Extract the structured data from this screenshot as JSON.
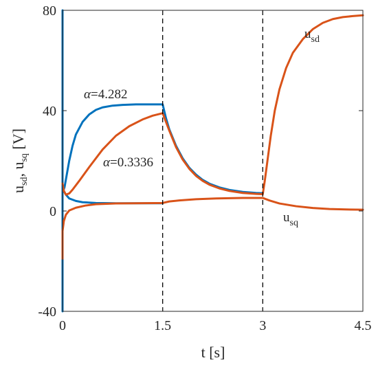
{
  "chart_data": {
    "type": "line",
    "title": "",
    "xlabel": "t [s]",
    "ylabel": {
      "u1": "u",
      "sub1": "sd",
      "sep": ", ",
      "u2": "u",
      "sub2": "sq",
      "unit": " [V]"
    },
    "xlim": [
      0,
      4.5
    ],
    "ylim": [
      -40,
      80
    ],
    "xticks": [
      0,
      1.5,
      3,
      4.5
    ],
    "xtick_labels": [
      "0",
      "1.5",
      "3",
      "4.5"
    ],
    "yticks": [
      -40,
      0,
      40,
      80
    ],
    "ytick_labels": [
      "-40",
      "0",
      "40",
      "80"
    ],
    "grid": false,
    "vlines": [
      1.5,
      3
    ],
    "series": [
      {
        "color": "#0072BD",
        "points": [
          [
            0,
            -40
          ],
          [
            0,
            80
          ],
          [
            0,
            10
          ],
          [
            0.01,
            8
          ],
          [
            0.03,
            9.5
          ],
          [
            0.06,
            14
          ],
          [
            0.1,
            20
          ],
          [
            0.15,
            26
          ],
          [
            0.2,
            30.5
          ],
          [
            0.3,
            35.5
          ],
          [
            0.4,
            38.5
          ],
          [
            0.5,
            40.3
          ],
          [
            0.6,
            41.3
          ],
          [
            0.75,
            42
          ],
          [
            0.9,
            42.3
          ],
          [
            1.1,
            42.5
          ],
          [
            1.3,
            42.5
          ],
          [
            1.5,
            42.5
          ],
          [
            1.55,
            37
          ],
          [
            1.6,
            32.5
          ],
          [
            1.7,
            26
          ],
          [
            1.8,
            21
          ],
          [
            1.9,
            17.2
          ],
          [
            2.0,
            14.5
          ],
          [
            2.1,
            12.4
          ],
          [
            2.2,
            10.9
          ],
          [
            2.35,
            9.4
          ],
          [
            2.5,
            8.4
          ],
          [
            2.7,
            7.6
          ],
          [
            2.9,
            7.2
          ],
          [
            3.0,
            7.1
          ]
        ]
      },
      {
        "color": "#0072BD",
        "points": [
          [
            0,
            9
          ],
          [
            0.05,
            6.5
          ],
          [
            0.1,
            5
          ],
          [
            0.2,
            4
          ],
          [
            0.3,
            3.5
          ],
          [
            0.5,
            3.2
          ],
          [
            0.8,
            3.1
          ],
          [
            1.1,
            3.1
          ],
          [
            1.5,
            3.1
          ]
        ]
      },
      {
        "color": "#D95319",
        "points": [
          [
            0,
            11
          ],
          [
            0.02,
            8
          ],
          [
            0.05,
            6.5
          ],
          [
            0.1,
            7
          ],
          [
            0.15,
            8.5
          ],
          [
            0.25,
            12
          ],
          [
            0.4,
            17.5
          ],
          [
            0.6,
            24.5
          ],
          [
            0.8,
            30
          ],
          [
            1.0,
            33.8
          ],
          [
            1.2,
            36.5
          ],
          [
            1.35,
            38
          ],
          [
            1.5,
            39
          ],
          [
            1.55,
            35.5
          ],
          [
            1.6,
            32
          ],
          [
            1.7,
            25.5
          ],
          [
            1.8,
            20.5
          ],
          [
            1.9,
            16.8
          ],
          [
            2.0,
            14
          ],
          [
            2.1,
            12
          ],
          [
            2.2,
            10.5
          ],
          [
            2.35,
            9
          ],
          [
            2.5,
            8
          ],
          [
            2.7,
            7.2
          ],
          [
            2.9,
            6.8
          ],
          [
            3.0,
            6.7
          ],
          [
            3.03,
            12
          ],
          [
            3.07,
            20
          ],
          [
            3.12,
            30
          ],
          [
            3.18,
            40
          ],
          [
            3.25,
            48.5
          ],
          [
            3.35,
            57
          ],
          [
            3.45,
            63
          ],
          [
            3.6,
            68.5
          ],
          [
            3.75,
            72.5
          ],
          [
            3.9,
            75
          ],
          [
            4.05,
            76.5
          ],
          [
            4.2,
            77.3
          ],
          [
            4.35,
            77.7
          ],
          [
            4.5,
            78
          ]
        ]
      },
      {
        "color": "#D95319",
        "points": [
          [
            0,
            -19
          ],
          [
            0,
            -8
          ],
          [
            0.02,
            -4
          ],
          [
            0.05,
            -1.5
          ],
          [
            0.1,
            0.2
          ],
          [
            0.2,
            1.3
          ],
          [
            0.35,
            2.2
          ],
          [
            0.5,
            2.7
          ],
          [
            0.8,
            3.0
          ],
          [
            1.1,
            3.1
          ],
          [
            1.5,
            3.2
          ],
          [
            1.6,
            3.8
          ],
          [
            1.75,
            4.2
          ],
          [
            2.0,
            4.7
          ],
          [
            2.3,
            5.0
          ],
          [
            2.7,
            5.2
          ],
          [
            3.0,
            5.2
          ],
          [
            3.1,
            4.2
          ],
          [
            3.25,
            3.0
          ],
          [
            3.5,
            1.9
          ],
          [
            3.75,
            1.2
          ],
          [
            4.0,
            0.8
          ],
          [
            4.25,
            0.6
          ],
          [
            4.5,
            0.5
          ]
        ]
      }
    ],
    "annotations": {
      "alpha_high": {
        "greek": "α",
        "text": "=4.282"
      },
      "alpha_low": {
        "greek": "α",
        "text": "=0.3336"
      },
      "usd": {
        "u": "u",
        "sub": "sd"
      },
      "usq": {
        "u": "u",
        "sub": "sq"
      }
    }
  }
}
